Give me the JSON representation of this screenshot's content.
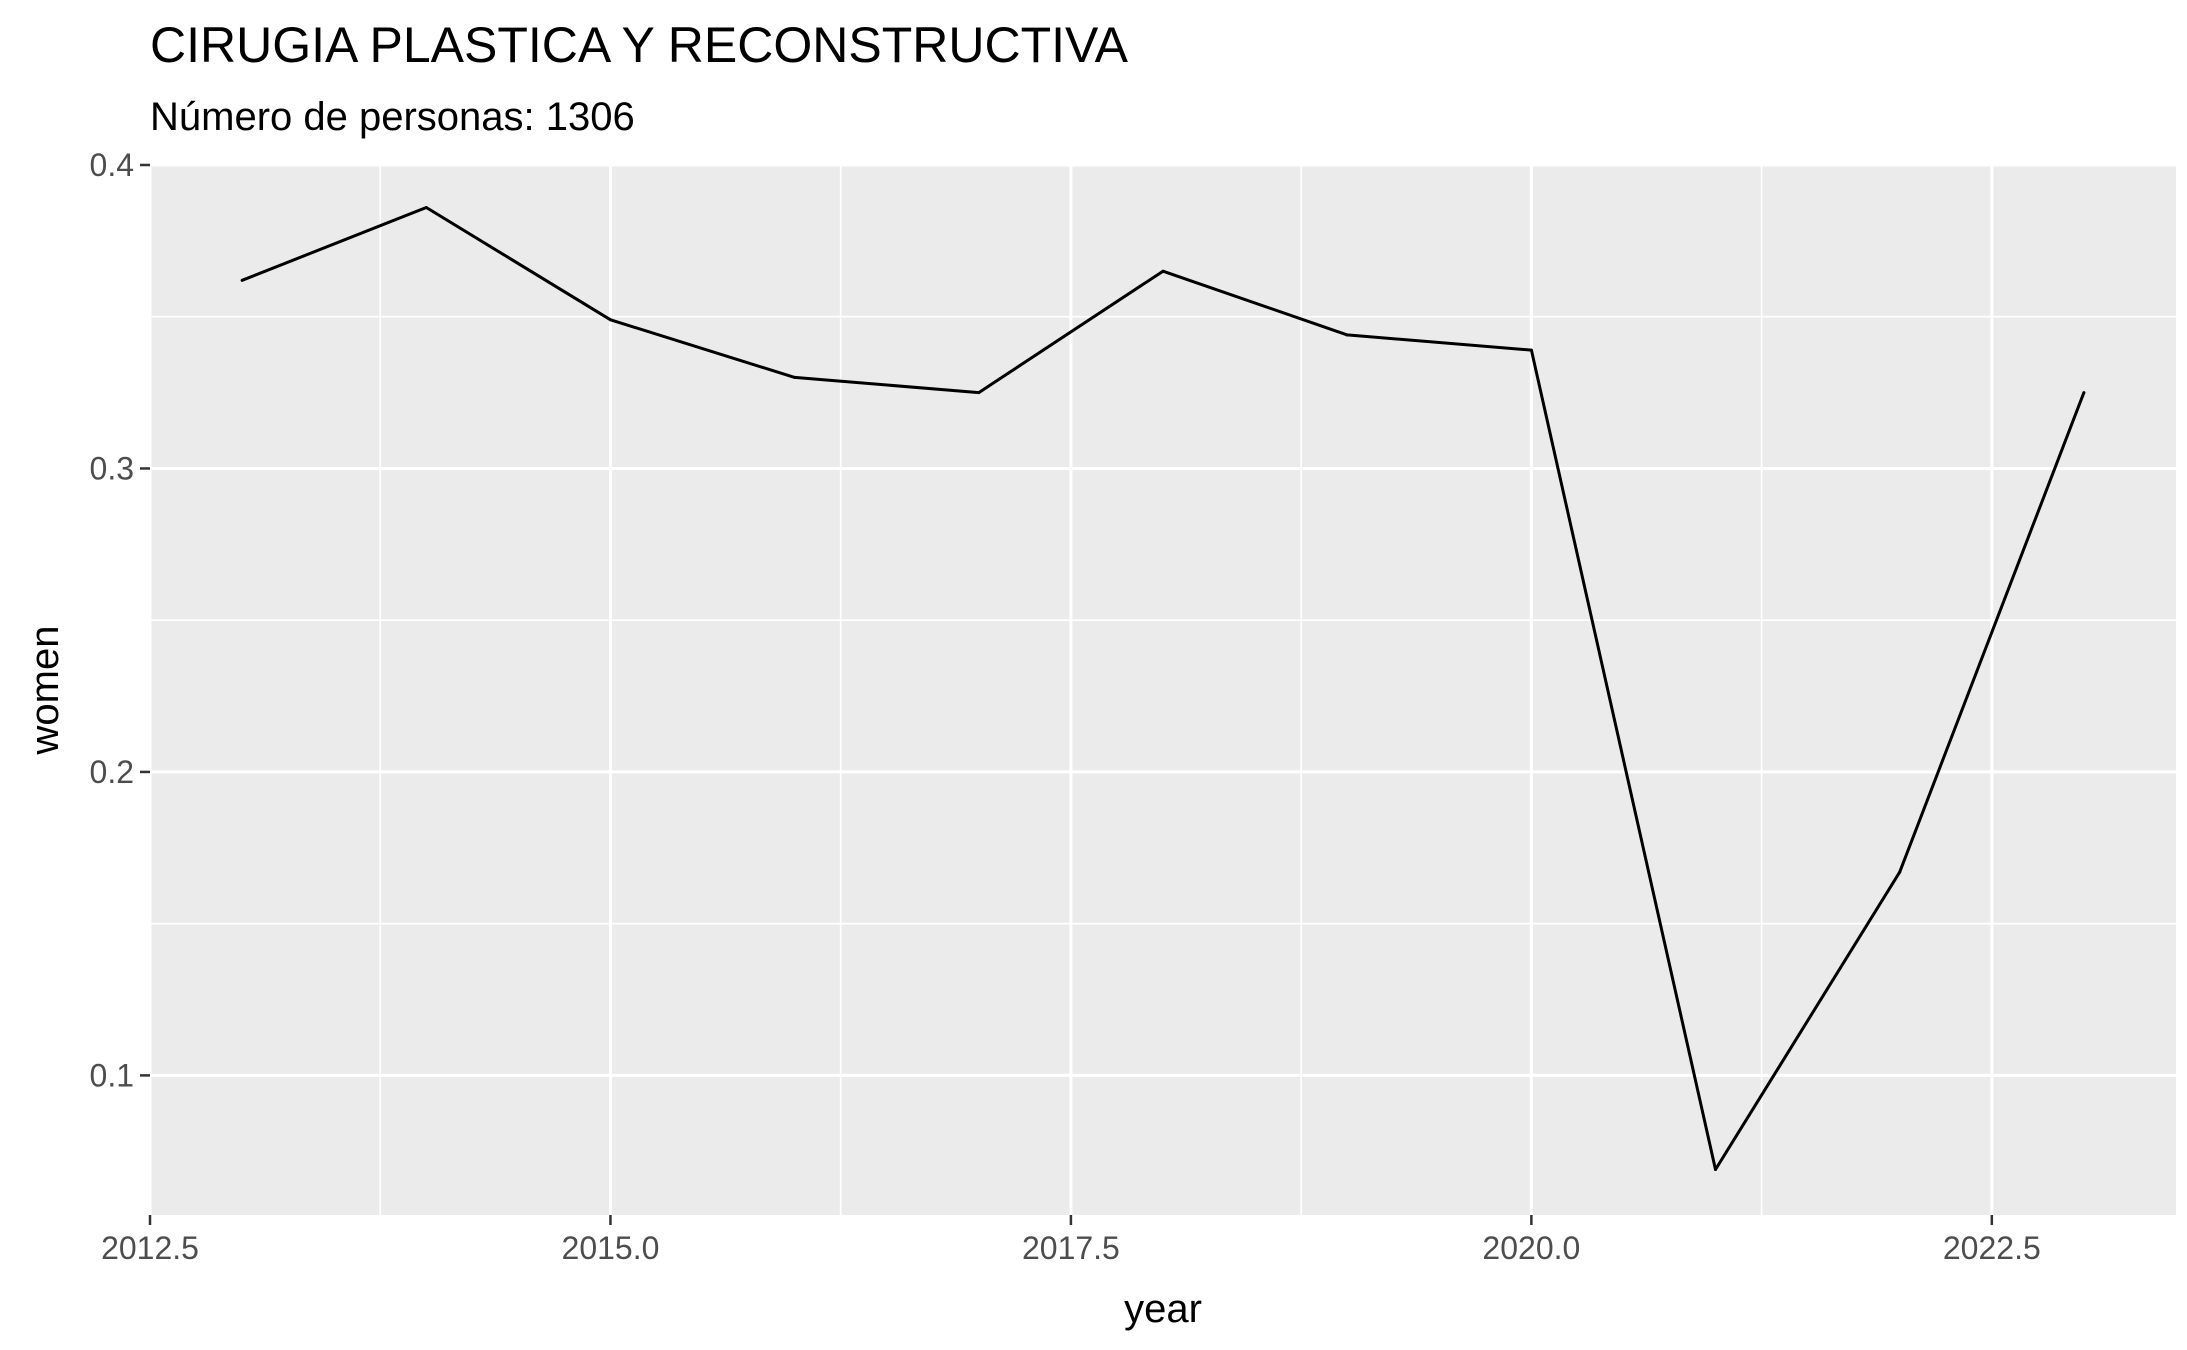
{
  "chart_data": {
    "type": "line",
    "title": "CIRUGIA PLASTICA Y RECONSTRUCTIVA",
    "subtitle": "Número de personas: 1306",
    "xlabel": "year",
    "ylabel": "women",
    "xlim": [
      2012.5,
      2023.5
    ],
    "ylim": [
      0.054,
      0.4
    ],
    "x_ticks": [
      2012.5,
      2015.0,
      2017.5,
      2020.0,
      2022.5
    ],
    "x_tick_labels": [
      "2012.5",
      "2015.0",
      "2017.5",
      "2020.0",
      "2022.5"
    ],
    "y_ticks": [
      0.1,
      0.2,
      0.3,
      0.4
    ],
    "y_tick_labels": [
      "0.1",
      "0.2",
      "0.3",
      "0.4"
    ],
    "grid": true,
    "panel_color": "#ebebeb",
    "line_color": "#000000",
    "series": [
      {
        "x": [
          2013,
          2014,
          2015,
          2016,
          2017,
          2018,
          2019,
          2020,
          2021,
          2022,
          2023
        ],
        "values": [
          0.362,
          0.386,
          0.349,
          0.33,
          0.325,
          0.365,
          0.344,
          0.339,
          0.069,
          0.167,
          0.325
        ]
      }
    ]
  }
}
